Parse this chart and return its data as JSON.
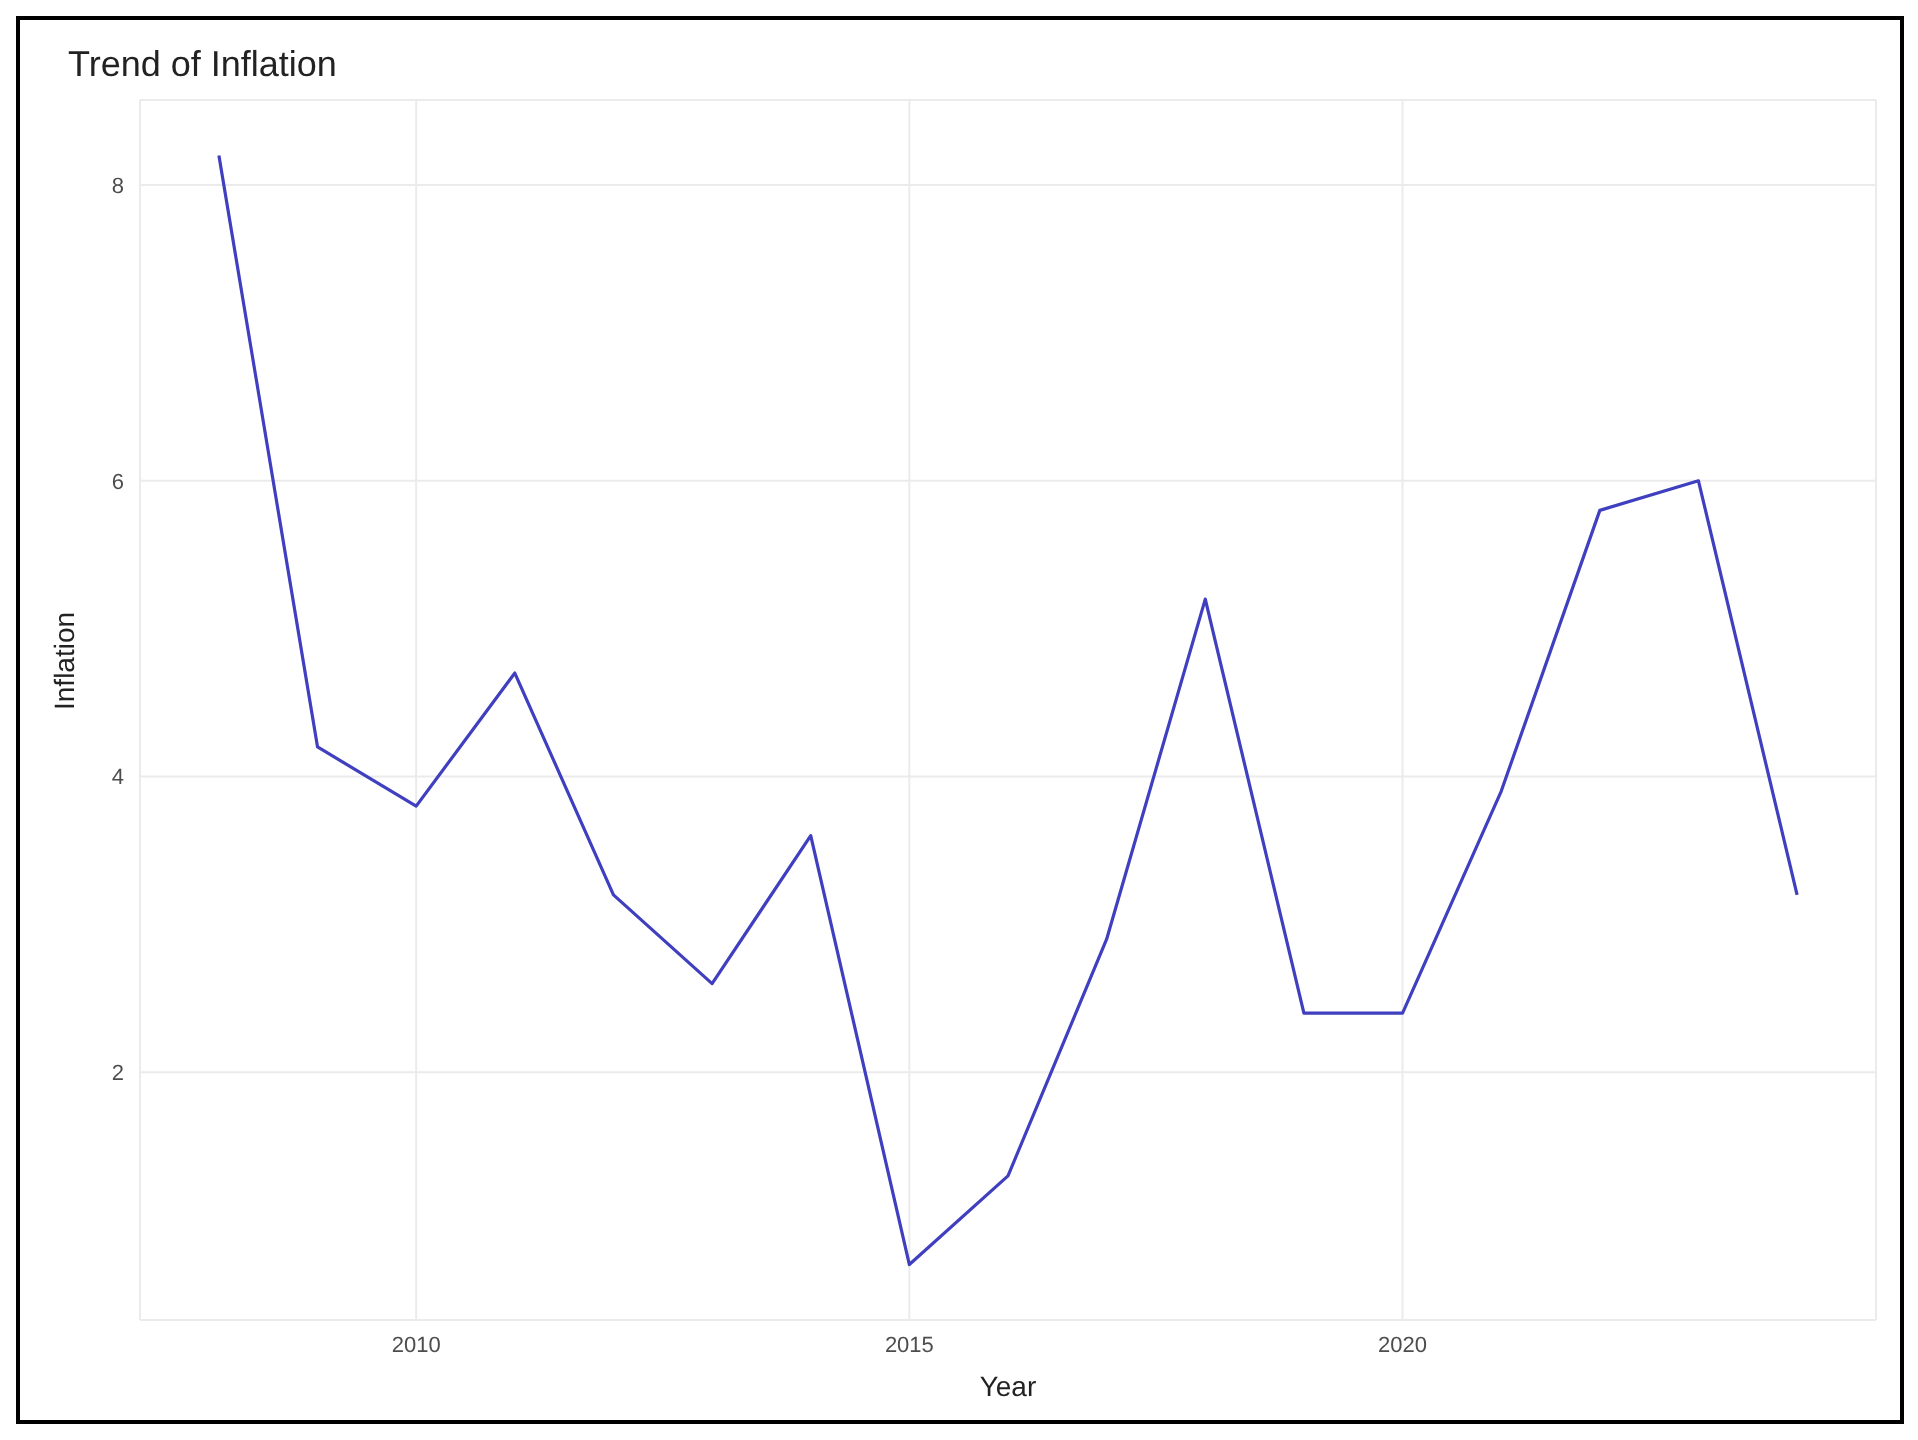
{
  "chart_data": {
    "type": "line",
    "title": "Trend of Inflation",
    "xlabel": "Year",
    "ylabel": "Inflation",
    "x": [
      2008,
      2009,
      2010,
      2011,
      2012,
      2013,
      2014,
      2015,
      2016,
      2017,
      2018,
      2019,
      2020,
      2021,
      2022,
      2023,
      2024
    ],
    "series": [
      {
        "color": "#3f3fbf",
        "values": [
          8.2,
          4.2,
          3.8,
          4.7,
          3.2,
          2.6,
          3.6,
          0.7,
          1.3,
          2.9,
          5.2,
          2.4,
          2.4,
          3.9,
          5.8,
          6.0,
          3.2
        ]
      }
    ],
    "xlim": [
      2007.2,
      2024.8
    ],
    "xticks": [
      2010,
      2015,
      2020
    ],
    "ylim": [
      0.325,
      8.575
    ],
    "yticks": [
      2,
      4,
      6,
      8
    ],
    "grid": true,
    "legend": false,
    "marker": "none",
    "line_style": "solid"
  }
}
